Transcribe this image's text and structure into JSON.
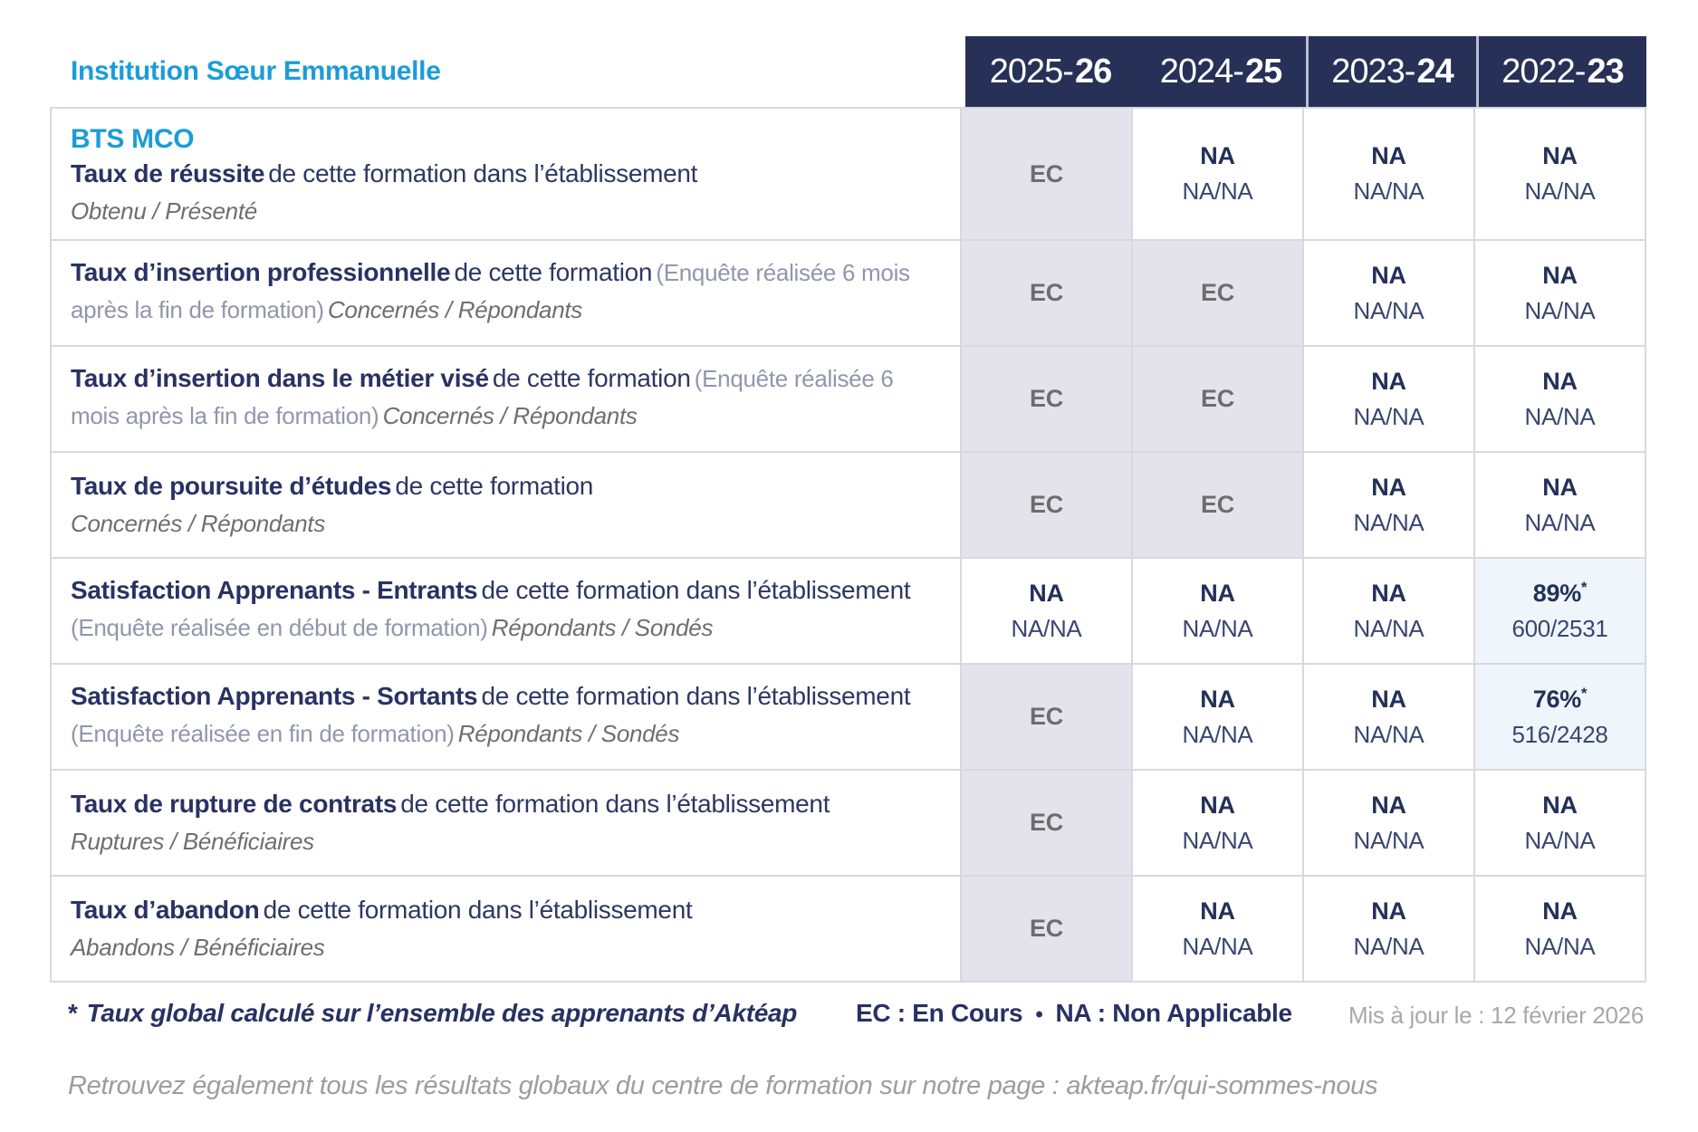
{
  "colors": {
    "accent_blue": "#1b9cd9",
    "header_navy": "#273157",
    "text_navy": "#2a3263",
    "ec_grey_text": "#6d6d6d",
    "ec_cell_bg": "#e4e3eb",
    "pct_cell_bg": "#eff6fb",
    "border_grey": "#d8d8e0",
    "muted_grey": "#9d9da0"
  },
  "institution": "Institution Sœur Emmanuelle",
  "program": "BTS MCO",
  "columns": [
    {
      "prefix": "2025-",
      "bold": "26"
    },
    {
      "prefix": "2024-",
      "bold": "25"
    },
    {
      "prefix": "2023-",
      "bold": "24"
    },
    {
      "prefix": "2022-",
      "bold": "23"
    }
  ],
  "rows": [
    {
      "title": "Taux de réussite",
      "subtitle": "de cette formation dans l’établissement",
      "ratio": "Obtenu / Présenté",
      "cells": [
        {
          "v": "EC"
        },
        {
          "v": "NA",
          "s": "NA/NA"
        },
        {
          "v": "NA",
          "s": "NA/NA"
        },
        {
          "v": "NA",
          "s": "NA/NA"
        }
      ]
    },
    {
      "title": "Taux d’insertion professionnelle",
      "subtitle": "de cette formation",
      "note": "(Enquête réalisée 6 mois après la fin de formation)",
      "ratio": "Concernés / Répondants",
      "cells": [
        {
          "v": "EC"
        },
        {
          "v": "EC"
        },
        {
          "v": "NA",
          "s": "NA/NA"
        },
        {
          "v": "NA",
          "s": "NA/NA"
        }
      ]
    },
    {
      "title": "Taux d’insertion dans le métier visé",
      "subtitle": "de cette formation",
      "note": "(Enquête réalisée 6 mois après la fin de formation)",
      "ratio": "Concernés / Répondants",
      "cells": [
        {
          "v": "EC"
        },
        {
          "v": "EC"
        },
        {
          "v": "NA",
          "s": "NA/NA"
        },
        {
          "v": "NA",
          "s": "NA/NA"
        }
      ]
    },
    {
      "title": "Taux de poursuite d’études",
      "subtitle": "de cette formation",
      "ratio": "Concernés / Répondants",
      "cells": [
        {
          "v": "EC"
        },
        {
          "v": "EC"
        },
        {
          "v": "NA",
          "s": "NA/NA"
        },
        {
          "v": "NA",
          "s": "NA/NA"
        }
      ]
    },
    {
      "title": "Satisfaction Apprenants - Entrants",
      "subtitle": "de cette formation dans l’établissement",
      "note": "(Enquête réalisée en début de formation)",
      "ratio": "Répondants / Sondés",
      "cells": [
        {
          "v": "NA",
          "s": "NA/NA"
        },
        {
          "v": "NA",
          "s": "NA/NA"
        },
        {
          "v": "NA",
          "s": "NA/NA"
        },
        {
          "v": "89%",
          "star": "*",
          "s": "600/2531"
        }
      ]
    },
    {
      "title": "Satisfaction Apprenants - Sortants",
      "subtitle": "de cette formation dans l’établissement",
      "note": "(Enquête réalisée en fin de formation)",
      "ratio": "Répondants / Sondés",
      "cells": [
        {
          "v": "EC"
        },
        {
          "v": "NA",
          "s": "NA/NA"
        },
        {
          "v": "NA",
          "s": "NA/NA"
        },
        {
          "v": "76%",
          "star": "*",
          "s": "516/2428"
        }
      ]
    },
    {
      "title": "Taux de rupture de contrats",
      "subtitle": "de cette formation dans l’établissement",
      "ratio": "Ruptures / Bénéficiaires",
      "cells": [
        {
          "v": "EC"
        },
        {
          "v": "NA",
          "s": "NA/NA"
        },
        {
          "v": "NA",
          "s": "NA/NA"
        },
        {
          "v": "NA",
          "s": "NA/NA"
        }
      ]
    },
    {
      "title": "Taux d’abandon",
      "subtitle": "de cette formation dans l’établissement",
      "ratio": "Abandons / Bénéficiaires",
      "cells": [
        {
          "v": "EC"
        },
        {
          "v": "NA",
          "s": "NA/NA"
        },
        {
          "v": "NA",
          "s": "NA/NA"
        },
        {
          "v": "NA",
          "s": "NA/NA"
        }
      ]
    }
  ],
  "footer": {
    "star": "*",
    "footnote": "Taux global calculé sur l’ensemble des apprenants d’Aktéap",
    "legend_ec": "EC : En Cours",
    "legend_sep": "•",
    "legend_na": "NA : Non Applicable",
    "updated": "Mis à jour le : 12 février 2026"
  },
  "bottom_note": "Retrouvez également tous les résultats globaux du centre de formation sur notre page : akteap.fr/qui-sommes-nous"
}
